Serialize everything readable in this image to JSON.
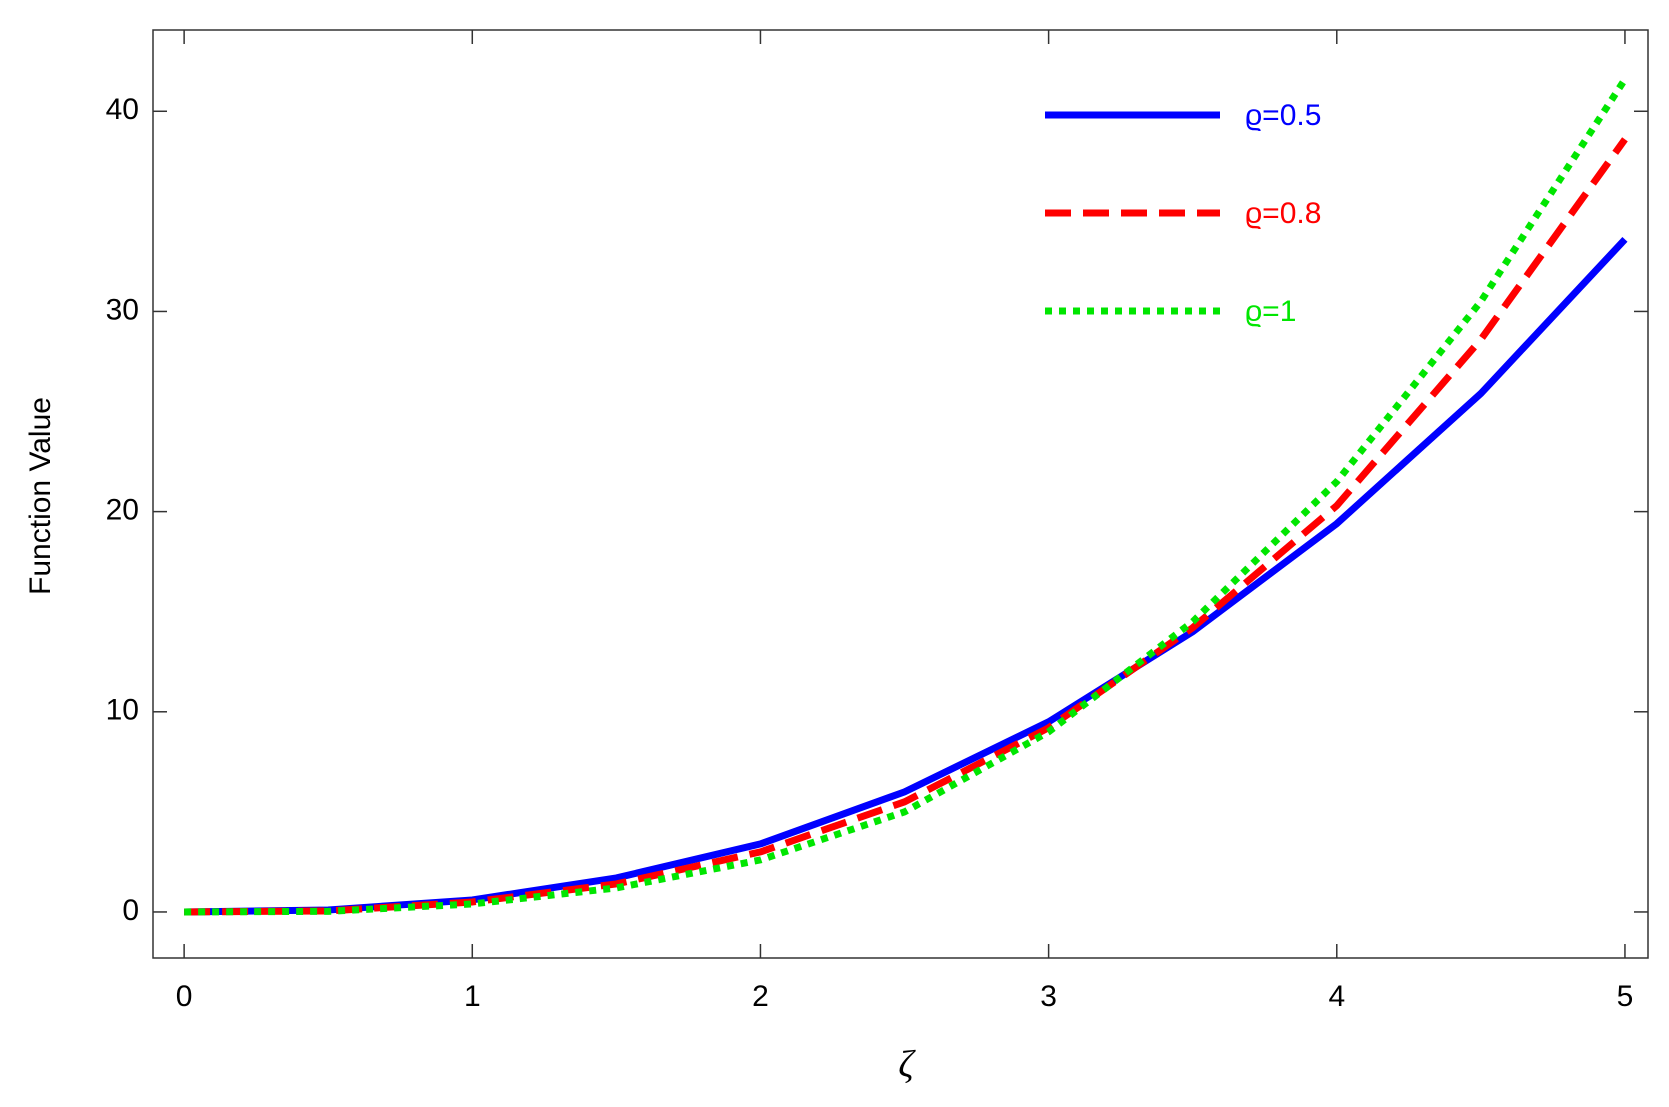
{
  "chart_data": {
    "type": "line",
    "x_label": "ζ",
    "y_label": "Function Value",
    "x": [
      0,
      0.5,
      1,
      1.5,
      2,
      2.5,
      3,
      3.5,
      4,
      4.5,
      5
    ],
    "series": [
      {
        "name": "ϱ=0.5",
        "color": "#0000ff",
        "dash": "solid",
        "values": [
          0,
          0.1,
          0.6,
          1.7,
          3.4,
          6.0,
          9.5,
          14.0,
          19.4,
          25.9,
          33.6
        ]
      },
      {
        "name": "ϱ=0.8",
        "color": "#ff0000",
        "dash": "dashed",
        "values": [
          0,
          0.05,
          0.5,
          1.4,
          3.0,
          5.5,
          9.2,
          14.2,
          20.3,
          28.6,
          38.6
        ]
      },
      {
        "name": "ϱ=1",
        "color": "#00e600",
        "dash": "dotted",
        "values": [
          0,
          0.03,
          0.4,
          1.2,
          2.6,
          5.0,
          9.0,
          14.5,
          21.5,
          30.5,
          41.6
        ]
      }
    ],
    "xlim": [
      -0.108,
      5.08
    ],
    "ylim": [
      -2.3,
      44.06
    ],
    "xticks": [
      0,
      1,
      2,
      3,
      4,
      5
    ],
    "yticks": [
      0,
      10,
      20,
      30,
      40
    ],
    "legend": "upper right"
  }
}
